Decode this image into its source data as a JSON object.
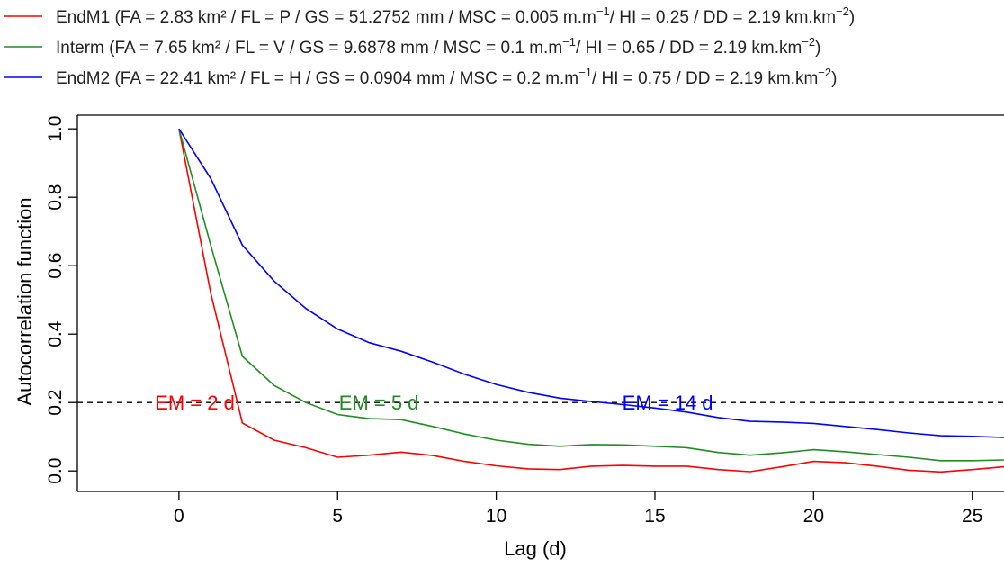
{
  "chart_data": {
    "type": "line",
    "xlabel": "Lag (d)",
    "ylabel": "Autocorrelation function",
    "xlim": [
      -3.2,
      26
    ],
    "ylim": [
      -0.06,
      1.04
    ],
    "x_ticks": [
      0,
      5,
      10,
      15,
      20,
      25
    ],
    "y_ticks": [
      0.0,
      0.2,
      0.4,
      0.6,
      0.8,
      1.0
    ],
    "y_tick_labels": [
      "0.0",
      "0.2",
      "0.4",
      "0.6",
      "0.8",
      "1.0"
    ],
    "reference_line": {
      "y": 0.2,
      "style": "dashed",
      "color": "#000000"
    },
    "legend_position": "top",
    "series": [
      {
        "name": "EndM1",
        "legend_label": "EndM1 (FA = 2.83 km² / FL = P / GS = 51.2752 mm / MSC = 0.005 m.m",
        "legend_tail": "/ HI = 0.25 / DD = 2.19 km.km",
        "color": "#ff0000",
        "x": [
          0,
          1,
          2,
          3,
          4,
          5,
          6,
          7,
          8,
          9,
          10,
          11,
          12,
          13,
          14,
          15,
          16,
          17,
          18,
          19,
          20,
          21,
          22,
          23,
          24,
          25,
          26
        ],
        "values": [
          1.0,
          0.52,
          0.14,
          0.09,
          0.068,
          0.04,
          0.046,
          0.055,
          0.045,
          0.028,
          0.015,
          0.006,
          0.004,
          0.014,
          0.016,
          0.014,
          0.014,
          0.004,
          -0.002,
          0.012,
          0.028,
          0.024,
          0.014,
          0.002,
          -0.003,
          0.004,
          0.012
        ]
      },
      {
        "name": "Interm",
        "legend_label": "Interm (FA = 7.65 km² / FL = V / GS = 9.6878 mm / MSC = 0.1 m.m",
        "legend_tail": "/ HI = 0.65 / DD = 2.19 km.km",
        "color": "#228b22",
        "x": [
          0,
          1,
          2,
          3,
          4,
          5,
          6,
          7,
          8,
          9,
          10,
          11,
          12,
          13,
          14,
          15,
          16,
          17,
          18,
          19,
          20,
          21,
          22,
          23,
          24,
          25,
          26
        ],
        "values": [
          1.0,
          0.66,
          0.335,
          0.25,
          0.2,
          0.165,
          0.153,
          0.15,
          0.13,
          0.108,
          0.09,
          0.078,
          0.072,
          0.077,
          0.076,
          0.072,
          0.068,
          0.054,
          0.046,
          0.053,
          0.062,
          0.056,
          0.048,
          0.04,
          0.03,
          0.03,
          0.032
        ]
      },
      {
        "name": "EndM2",
        "legend_label": "EndM2 (FA = 22.41 km² / FL = H / GS = 0.0904 mm / MSC = 0.2 m.m",
        "legend_tail": "/ HI = 0.75 / DD = 2.19 km.km",
        "color": "#0000ff",
        "x": [
          0,
          1,
          2,
          3,
          4,
          5,
          6,
          7,
          8,
          9,
          10,
          11,
          12,
          13,
          14,
          15,
          16,
          17,
          18,
          19,
          20,
          21,
          22,
          23,
          24,
          25,
          26
        ],
        "values": [
          1.0,
          0.855,
          0.66,
          0.555,
          0.475,
          0.415,
          0.375,
          0.35,
          0.318,
          0.283,
          0.253,
          0.23,
          0.213,
          0.203,
          0.194,
          0.184,
          0.172,
          0.156,
          0.145,
          0.143,
          0.139,
          0.13,
          0.121,
          0.111,
          0.103,
          0.101,
          0.098
        ]
      }
    ],
    "annotations": [
      {
        "text": "EM = 2 d",
        "x": 0.5,
        "y": 0.2,
        "color": "#ff0000"
      },
      {
        "text": "EM = 5 d",
        "x": 6.3,
        "y": 0.2,
        "color": "#228b22"
      },
      {
        "text": "EM = 14 d",
        "x": 15.4,
        "y": 0.2,
        "color": "#0000ff"
      }
    ]
  }
}
